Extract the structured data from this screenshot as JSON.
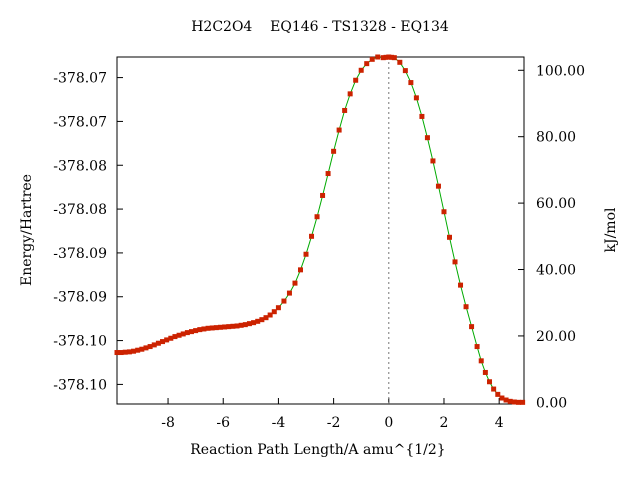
{
  "chart_data": {
    "type": "line",
    "title": "H2C2O4    EQ146 - TS1328 - EQ134",
    "xlabel": "Reaction Path Length/A amu^{1/2}",
    "ylabel": "Energy/Hartree",
    "y2label": "kJ/mol",
    "xlim": [
      -9.85,
      4.9
    ],
    "ylim_kjmol": [
      -0.5,
      104.0
    ],
    "x_ticks": [
      -8,
      -6,
      -4,
      -2,
      0,
      2,
      4
    ],
    "x_tick_labels": [
      "-8",
      "-6",
      "-4",
      "-2",
      "0",
      "2",
      "4"
    ],
    "y_left_tick_labels": [
      "-378.07",
      "-378.07",
      "-378.08",
      "-378.08",
      "-378.09",
      "-378.09",
      "-378.10",
      "-378.10"
    ],
    "y_left_tick_kjmol": [
      97.8,
      84.6,
      71.4,
      58.2,
      45.0,
      31.8,
      18.6,
      5.4
    ],
    "y_right_ticks": [
      0,
      20,
      40,
      60,
      80,
      100
    ],
    "y_right_tick_labels": [
      "0.00",
      "20.00",
      "40.00",
      "60.00",
      "80.00",
      "100.00"
    ],
    "ts_marker_x": 0,
    "grid": false,
    "line_color": "#00aa00",
    "marker_color": "#cc2200",
    "series": [
      {
        "x": [
          -9.85,
          -9.7,
          -9.55,
          -9.4,
          -9.25,
          -9.1,
          -8.95,
          -8.8,
          -8.65,
          -8.5,
          -8.35,
          -8.2,
          -8.05,
          -7.9,
          -7.75,
          -7.6,
          -7.45,
          -7.3,
          -7.15,
          -7.0,
          -6.85,
          -6.7,
          -6.55,
          -6.4,
          -6.25,
          -6.1,
          -5.95,
          -5.8,
          -5.65,
          -5.5,
          -5.35,
          -5.2,
          -5.05,
          -4.9,
          -4.75,
          -4.6,
          -4.45,
          -4.3,
          -4.15,
          -4.0,
          -3.8,
          -3.6,
          -3.4,
          -3.2,
          -3.0,
          -2.8,
          -2.6,
          -2.4,
          -2.2,
          -2.0,
          -1.8,
          -1.6,
          -1.4,
          -1.2,
          -1.0,
          -0.8,
          -0.6,
          -0.4,
          -0.2,
          -0.1,
          0.0,
          0.1,
          0.2,
          0.4,
          0.6,
          0.8,
          1.0,
          1.2,
          1.4,
          1.6,
          1.8,
          2.0,
          2.2,
          2.4,
          2.6,
          2.8,
          3.0,
          3.2,
          3.35,
          3.5,
          3.65,
          3.8,
          3.95,
          4.1,
          4.25,
          4.4,
          4.55,
          4.7,
          4.85
        ],
        "values": [
          15.0,
          15.0,
          15.1,
          15.2,
          15.4,
          15.7,
          16.0,
          16.4,
          16.8,
          17.3,
          17.8,
          18.3,
          18.8,
          19.3,
          19.8,
          20.2,
          20.6,
          21.0,
          21.3,
          21.6,
          21.9,
          22.1,
          22.3,
          22.4,
          22.5,
          22.6,
          22.7,
          22.8,
          22.9,
          23.0,
          23.2,
          23.4,
          23.7,
          24.0,
          24.4,
          24.9,
          25.5,
          26.3,
          27.3,
          28.5,
          30.5,
          32.9,
          35.9,
          39.9,
          44.6,
          50.0,
          55.9,
          62.3,
          68.9,
          75.6,
          82.0,
          87.9,
          92.9,
          97.0,
          100.0,
          102.0,
          103.3,
          104.0,
          103.8,
          103.9,
          104.0,
          103.9,
          103.8,
          102.4,
          99.9,
          96.3,
          91.7,
          86.1,
          79.7,
          72.7,
          65.1,
          57.4,
          49.7,
          42.3,
          35.3,
          28.8,
          22.8,
          16.8,
          12.5,
          9.0,
          6.2,
          4.0,
          2.4,
          1.3,
          0.7,
          0.3,
          0.1,
          0.0,
          0.0
        ]
      }
    ]
  }
}
